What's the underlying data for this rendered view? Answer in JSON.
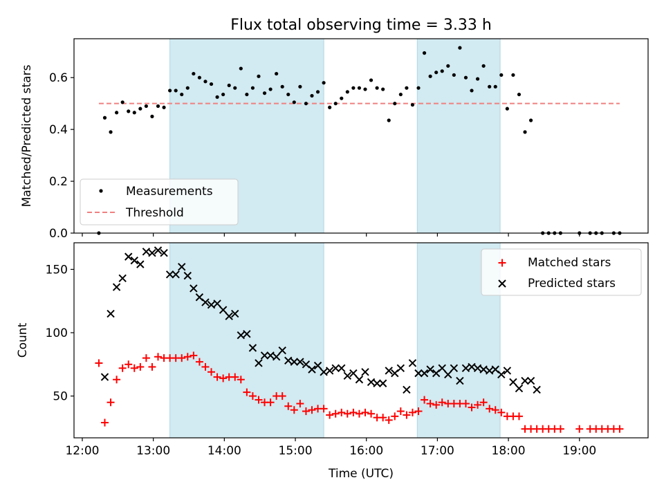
{
  "title": "Flux total observing time = 3.33 h",
  "colors": {
    "measurement": "#000000",
    "threshold": "#f08080",
    "matched": "#ff0000",
    "predicted": "#000000",
    "shade": "#add8e6"
  },
  "chart_data": [
    {
      "type": "scatter",
      "ylabel": "Matched/Predicted stars",
      "xlabel": "",
      "xlim": [
        "11:53",
        "19:58"
      ],
      "ylim": [
        0,
        0.75
      ],
      "yticks": [
        0.0,
        0.2,
        0.4,
        0.6
      ],
      "ytick_labels": [
        "0.0",
        "0.2",
        "0.4",
        "0.6"
      ],
      "xticks": [
        "12:00",
        "13:00",
        "14:00",
        "15:00",
        "16:00",
        "17:00",
        "18:00",
        "19:00"
      ],
      "shaded_intervals": [
        [
          "13:14",
          "15:24"
        ],
        [
          "16:43",
          "17:53"
        ]
      ],
      "legend_position": "lower-left",
      "series": [
        {
          "name": "Measurements",
          "marker": "dot",
          "points": [
            [
              "12:14",
              0.0
            ],
            [
              "12:19",
              0.445
            ],
            [
              "12:24",
              0.39
            ],
            [
              "12:29",
              0.465
            ],
            [
              "12:34",
              0.505
            ],
            [
              "12:39",
              0.47
            ],
            [
              "12:44",
              0.465
            ],
            [
              "12:49",
              0.48
            ],
            [
              "12:54",
              0.49
            ],
            [
              "12:59",
              0.45
            ],
            [
              "13:04",
              0.49
            ],
            [
              "13:09",
              0.485
            ],
            [
              "13:14",
              0.55
            ],
            [
              "13:19",
              0.55
            ],
            [
              "13:24",
              0.535
            ],
            [
              "13:29",
              0.56
            ],
            [
              "13:34",
              0.615
            ],
            [
              "13:39",
              0.6
            ],
            [
              "13:44",
              0.585
            ],
            [
              "13:49",
              0.575
            ],
            [
              "13:54",
              0.525
            ],
            [
              "13:59",
              0.535
            ],
            [
              "14:04",
              0.57
            ],
            [
              "14:09",
              0.56
            ],
            [
              "14:14",
              0.635
            ],
            [
              "14:19",
              0.535
            ],
            [
              "14:24",
              0.56
            ],
            [
              "14:29",
              0.605
            ],
            [
              "14:34",
              0.54
            ],
            [
              "14:39",
              0.555
            ],
            [
              "14:44",
              0.615
            ],
            [
              "14:49",
              0.565
            ],
            [
              "14:54",
              0.535
            ],
            [
              "14:59",
              0.505
            ],
            [
              "15:04",
              0.565
            ],
            [
              "15:09",
              0.5
            ],
            [
              "15:14",
              0.53
            ],
            [
              "15:19",
              0.545
            ],
            [
              "15:24",
              0.58
            ],
            [
              "15:29",
              0.485
            ],
            [
              "15:34",
              0.5
            ],
            [
              "15:39",
              0.52
            ],
            [
              "15:44",
              0.545
            ],
            [
              "15:49",
              0.56
            ],
            [
              "15:54",
              0.56
            ],
            [
              "15:59",
              0.555
            ],
            [
              "16:04",
              0.59
            ],
            [
              "16:09",
              0.56
            ],
            [
              "16:14",
              0.555
            ],
            [
              "16:19",
              0.435
            ],
            [
              "16:24",
              0.5
            ],
            [
              "16:29",
              0.535
            ],
            [
              "16:34",
              0.56
            ],
            [
              "16:39",
              0.495
            ],
            [
              "16:44",
              0.56
            ],
            [
              "16:49",
              0.695
            ],
            [
              "16:54",
              0.605
            ],
            [
              "16:59",
              0.62
            ],
            [
              "17:04",
              0.625
            ],
            [
              "17:09",
              0.645
            ],
            [
              "17:14",
              0.61
            ],
            [
              "17:19",
              0.715
            ],
            [
              "17:24",
              0.6
            ],
            [
              "17:29",
              0.55
            ],
            [
              "17:34",
              0.595
            ],
            [
              "17:39",
              0.645
            ],
            [
              "17:44",
              0.565
            ],
            [
              "17:49",
              0.565
            ],
            [
              "17:54",
              0.61
            ],
            [
              "17:59",
              0.48
            ],
            [
              "18:04",
              0.61
            ],
            [
              "18:09",
              0.535
            ],
            [
              "18:14",
              0.39
            ],
            [
              "18:19",
              0.435
            ],
            [
              "18:29",
              0.0
            ],
            [
              "18:34",
              0.0
            ],
            [
              "18:39",
              0.0
            ],
            [
              "18:44",
              0.0
            ],
            [
              "19:00",
              0.0
            ],
            [
              "19:09",
              0.0
            ],
            [
              "19:14",
              0.0
            ],
            [
              "19:19",
              0.0
            ],
            [
              "19:29",
              0.0
            ],
            [
              "19:34",
              0.0
            ]
          ]
        },
        {
          "name": "Threshold",
          "marker": "dashed-line",
          "points": [
            [
              "12:14",
              0.5
            ],
            [
              "19:34",
              0.5
            ]
          ]
        }
      ]
    },
    {
      "type": "scatter",
      "ylabel": "Count",
      "xlabel": "Time (UTC)",
      "xlim": [
        "11:53",
        "19:58"
      ],
      "ylim": [
        17,
        171
      ],
      "yticks": [
        50,
        100,
        150
      ],
      "ytick_labels": [
        "50",
        "100",
        "150"
      ],
      "xticks": [
        "12:00",
        "13:00",
        "14:00",
        "15:00",
        "16:00",
        "17:00",
        "18:00",
        "19:00"
      ],
      "xtick_labels": [
        "12:00",
        "13:00",
        "14:00",
        "15:00",
        "16:00",
        "17:00",
        "18:00",
        "19:00"
      ],
      "shaded_intervals": [
        [
          "13:14",
          "15:24"
        ],
        [
          "16:43",
          "17:53"
        ]
      ],
      "legend_position": "upper-right",
      "series": [
        {
          "name": "Matched stars",
          "marker": "plus",
          "points": [
            [
              "12:14",
              76
            ],
            [
              "12:19",
              29
            ],
            [
              "12:24",
              45
            ],
            [
              "12:29",
              63
            ],
            [
              "12:34",
              72
            ],
            [
              "12:39",
              75
            ],
            [
              "12:44",
              72
            ],
            [
              "12:49",
              73
            ],
            [
              "12:54",
              80
            ],
            [
              "12:59",
              73
            ],
            [
              "13:04",
              81
            ],
            [
              "13:09",
              80
            ],
            [
              "13:14",
              80
            ],
            [
              "13:19",
              80
            ],
            [
              "13:24",
              80
            ],
            [
              "13:29",
              81
            ],
            [
              "13:34",
              82
            ],
            [
              "13:39",
              77
            ],
            [
              "13:44",
              73
            ],
            [
              "13:49",
              69
            ],
            [
              "13:54",
              65
            ],
            [
              "13:59",
              64
            ],
            [
              "14:04",
              65
            ],
            [
              "14:09",
              65
            ],
            [
              "14:14",
              63
            ],
            [
              "14:19",
              53
            ],
            [
              "14:24",
              50
            ],
            [
              "14:29",
              47
            ],
            [
              "14:34",
              45
            ],
            [
              "14:39",
              45
            ],
            [
              "14:44",
              50
            ],
            [
              "14:49",
              50
            ],
            [
              "14:54",
              42
            ],
            [
              "14:59",
              39
            ],
            [
              "15:04",
              44
            ],
            [
              "15:09",
              38
            ],
            [
              "15:14",
              39
            ],
            [
              "15:19",
              40
            ],
            [
              "15:24",
              40
            ],
            [
              "15:29",
              35
            ],
            [
              "15:34",
              36
            ],
            [
              "15:39",
              37
            ],
            [
              "15:44",
              36
            ],
            [
              "15:49",
              37
            ],
            [
              "15:54",
              36
            ],
            [
              "15:59",
              37
            ],
            [
              "16:04",
              36
            ],
            [
              "16:09",
              33
            ],
            [
              "16:14",
              33
            ],
            [
              "16:19",
              31
            ],
            [
              "16:24",
              34
            ],
            [
              "16:29",
              38
            ],
            [
              "16:34",
              35
            ],
            [
              "16:39",
              37
            ],
            [
              "16:44",
              38
            ],
            [
              "16:49",
              47
            ],
            [
              "16:54",
              44
            ],
            [
              "16:59",
              43
            ],
            [
              "17:04",
              45
            ],
            [
              "17:09",
              44
            ],
            [
              "17:14",
              44
            ],
            [
              "17:19",
              44
            ],
            [
              "17:24",
              44
            ],
            [
              "17:29",
              41
            ],
            [
              "17:34",
              43
            ],
            [
              "17:39",
              45
            ],
            [
              "17:44",
              40
            ],
            [
              "17:49",
              39
            ],
            [
              "17:54",
              37
            ],
            [
              "17:59",
              34
            ],
            [
              "18:04",
              34
            ],
            [
              "18:09",
              34
            ],
            [
              "18:14",
              24
            ],
            [
              "18:19",
              24
            ],
            [
              "18:24",
              24
            ],
            [
              "18:29",
              24
            ],
            [
              "18:34",
              24
            ],
            [
              "18:39",
              24
            ],
            [
              "18:44",
              24
            ],
            [
              "19:00",
              24
            ],
            [
              "19:09",
              24
            ],
            [
              "19:14",
              24
            ],
            [
              "19:19",
              24
            ],
            [
              "19:24",
              24
            ],
            [
              "19:29",
              24
            ],
            [
              "19:34",
              24
            ]
          ]
        },
        {
          "name": "Predicted stars",
          "marker": "x",
          "points": [
            [
              "12:19",
              65
            ],
            [
              "12:24",
              115
            ],
            [
              "12:29",
              136
            ],
            [
              "12:34",
              143
            ],
            [
              "12:39",
              160
            ],
            [
              "12:44",
              157
            ],
            [
              "12:49",
              154
            ],
            [
              "12:54",
              164
            ],
            [
              "12:59",
              163
            ],
            [
              "13:04",
              165
            ],
            [
              "13:09",
              163
            ],
            [
              "13:14",
              146
            ],
            [
              "13:19",
              146
            ],
            [
              "13:24",
              152
            ],
            [
              "13:29",
              145
            ],
            [
              "13:34",
              135
            ],
            [
              "13:39",
              128
            ],
            [
              "13:44",
              124
            ],
            [
              "13:49",
              122
            ],
            [
              "13:54",
              123
            ],
            [
              "13:59",
              118
            ],
            [
              "14:04",
              113
            ],
            [
              "14:09",
              115
            ],
            [
              "14:14",
              98
            ],
            [
              "14:19",
              99
            ],
            [
              "14:24",
              88
            ],
            [
              "14:29",
              76
            ],
            [
              "14:34",
              82
            ],
            [
              "14:39",
              82
            ],
            [
              "14:44",
              81
            ],
            [
              "14:49",
              86
            ],
            [
              "14:54",
              78
            ],
            [
              "14:59",
              77
            ],
            [
              "15:04",
              77
            ],
            [
              "15:09",
              75
            ],
            [
              "15:14",
              71
            ],
            [
              "15:19",
              74
            ],
            [
              "15:24",
              69
            ],
            [
              "15:29",
              70
            ],
            [
              "15:34",
              72
            ],
            [
              "15:39",
              72
            ],
            [
              "15:44",
              66
            ],
            [
              "15:49",
              68
            ],
            [
              "15:54",
              63
            ],
            [
              "15:59",
              69
            ],
            [
              "16:04",
              61
            ],
            [
              "16:09",
              60
            ],
            [
              "16:14",
              60
            ],
            [
              "16:19",
              70
            ],
            [
              "16:24",
              68
            ],
            [
              "16:29",
              72
            ],
            [
              "16:34",
              55
            ],
            [
              "16:39",
              76
            ],
            [
              "16:44",
              68
            ],
            [
              "16:49",
              68
            ],
            [
              "16:54",
              71
            ],
            [
              "16:59",
              68
            ],
            [
              "17:04",
              72
            ],
            [
              "17:09",
              67
            ],
            [
              "17:14",
              72
            ],
            [
              "17:19",
              62
            ],
            [
              "17:24",
              72
            ],
            [
              "17:29",
              73
            ],
            [
              "17:34",
              72
            ],
            [
              "17:39",
              71
            ],
            [
              "17:44",
              70
            ],
            [
              "17:49",
              71
            ],
            [
              "17:54",
              67
            ],
            [
              "17:59",
              70
            ],
            [
              "18:04",
              61
            ],
            [
              "18:09",
              56
            ],
            [
              "18:14",
              62
            ],
            [
              "18:19",
              62
            ],
            [
              "18:24",
              55
            ]
          ]
        }
      ]
    }
  ]
}
